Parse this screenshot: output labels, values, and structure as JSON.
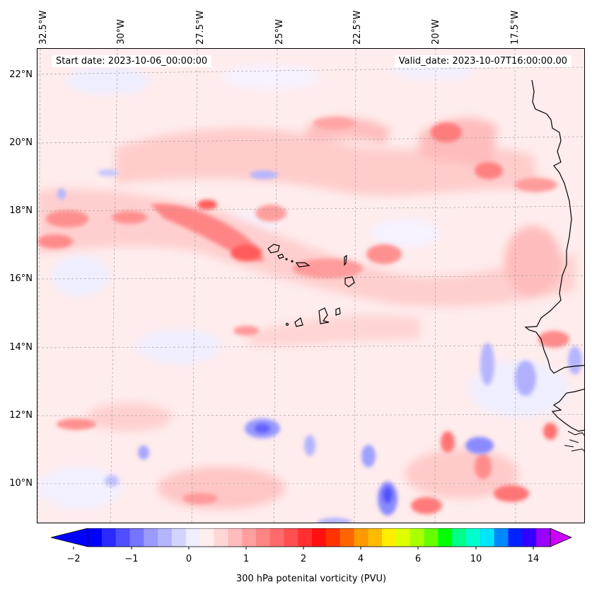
{
  "header": {
    "start_date": "Start date: 2023-10-06_00:00:00",
    "valid_date": "Valid_date: 2023-10-07T16:00:00.00"
  },
  "axes": {
    "lon_labels": [
      "32.5°W",
      "30°W",
      "27.5°W",
      "25°W",
      "22.5°W",
      "20°W",
      "17.5°W"
    ],
    "lat_labels": [
      "22°N",
      "20°N",
      "18°N",
      "16°N",
      "14°N",
      "12°N",
      "10°N"
    ]
  },
  "colorbar": {
    "title": "300 hPa potenital vorticity (PVU)",
    "tick_labels": [
      "−2",
      "−1",
      "0",
      "1",
      "2",
      "4",
      "6",
      "10",
      "14"
    ],
    "colors": [
      "#0000ff",
      "#2a2aff",
      "#4f4fff",
      "#7575ff",
      "#9a9aff",
      "#b5b5ff",
      "#d3d3ff",
      "#eeeeff",
      "#ffeeee",
      "#ffd6d6",
      "#ffbcbc",
      "#ff9f9f",
      "#ff8585",
      "#ff6a6a",
      "#ff4f4f",
      "#ff3030",
      "#ff1010",
      "#ff3300",
      "#ff6600",
      "#ff9900",
      "#ffbb00",
      "#ffee00",
      "#ddff00",
      "#aaff00",
      "#66ff00",
      "#00ff00",
      "#00ff88",
      "#00ffcc",
      "#00e5ff",
      "#0088ff",
      "#0022ff",
      "#3300ff",
      "#9900ff"
    ],
    "under_color": "#0000ff",
    "over_color": "#cc00ff"
  },
  "map": {
    "background": "#ffecec",
    "coastline_color": "#000000"
  }
}
